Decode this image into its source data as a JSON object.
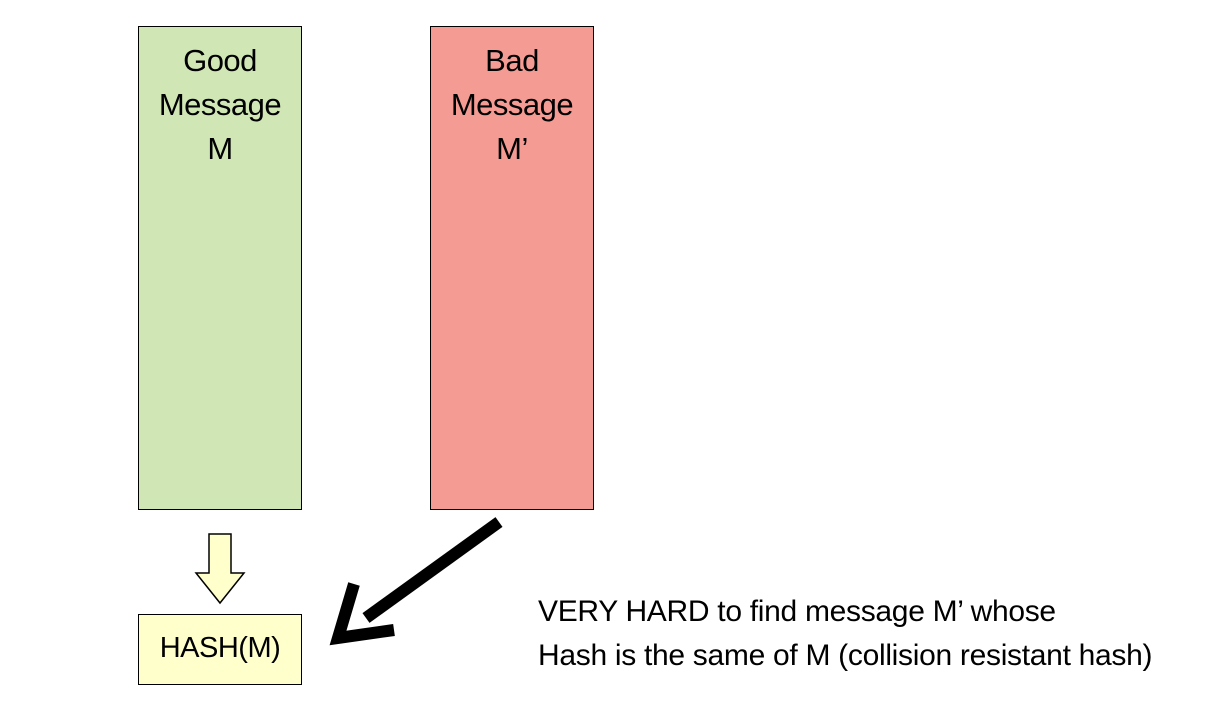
{
  "good_message": {
    "lines": [
      "Good",
      "Message",
      "M"
    ],
    "fill": "#d0e7b5"
  },
  "bad_message": {
    "lines": [
      "Bad",
      "Message",
      "M’"
    ],
    "fill": "#f49b93"
  },
  "hash_box": {
    "label": "HASH(M)",
    "fill": "#ffffcc"
  },
  "hash_arrow": {
    "fill": "#ffffcc"
  },
  "collision_arrow": {
    "color": "#000000"
  },
  "caption": {
    "lines": [
      "VERY HARD to find message M’ whose",
      "Hash is the same of M (collision resistant hash)"
    ]
  }
}
